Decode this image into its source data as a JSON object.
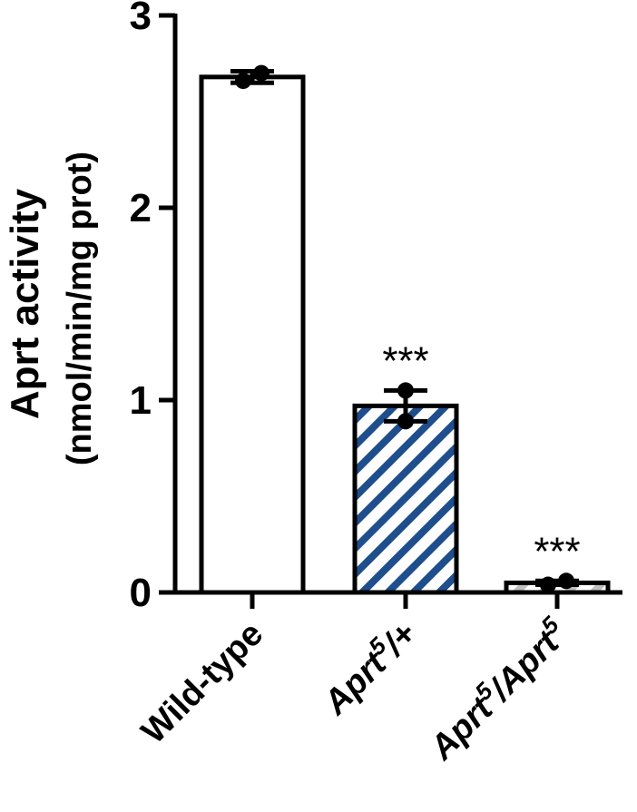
{
  "chart_data": {
    "type": "bar",
    "title": "",
    "ylabel_line1": "Aprt activity",
    "ylabel_line2": "(nmol/min/mg prot)",
    "ylim": [
      0,
      3
    ],
    "yticks": [
      0,
      1,
      2,
      3
    ],
    "ytick_labels": [
      "0",
      "1",
      "2",
      "3"
    ],
    "categories": [
      {
        "base": "Wild-type",
        "sup": "",
        "tail": "",
        "italic": false
      },
      {
        "base": "Aprt",
        "sup": "5",
        "tail": "/+",
        "italic": true
      },
      {
        "base": "Aprt",
        "sup": "5",
        "tail": "/Aprt",
        "sup2": "5",
        "italic": true
      }
    ],
    "values": [
      2.68,
      0.97,
      0.05
    ],
    "error": [
      0.03,
      0.08,
      0.01
    ],
    "points": [
      [
        2.66,
        2.7
      ],
      [
        1.05,
        0.89
      ],
      [
        0.04,
        0.06
      ]
    ],
    "significance": [
      "",
      "***",
      "***"
    ],
    "fills": [
      "white",
      "hatch-blue",
      "hatch-grey"
    ],
    "colors": {
      "hatch_blue": "#1f4e8c",
      "hatch_grey": "#bfbfbf",
      "axis": "#000000"
    }
  }
}
